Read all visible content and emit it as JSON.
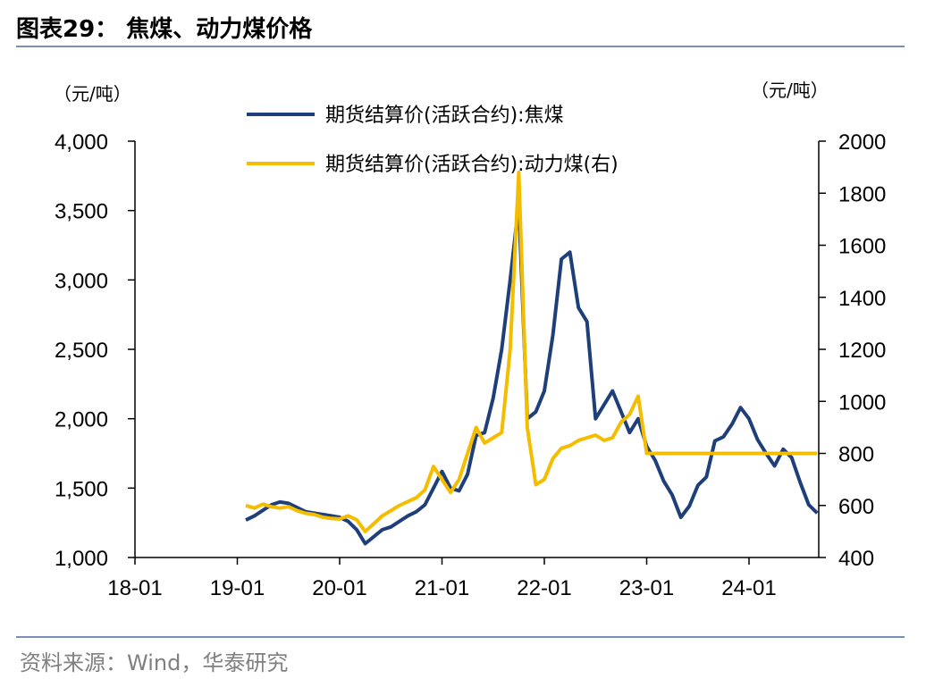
{
  "header": {
    "title": "图表29：  焦煤、动力煤价格"
  },
  "footer": {
    "source": "资料来源：Wind，华泰研究"
  },
  "chart_data": {
    "type": "line",
    "left_unit": "（元/吨）",
    "right_unit": "（元/吨）",
    "x_ticks": [
      "18-01",
      "19-01",
      "20-01",
      "21-01",
      "22-01",
      "23-01",
      "24-01"
    ],
    "y_left": {
      "min": 1000,
      "max": 4000,
      "ticks": [
        1000,
        1500,
        2000,
        2500,
        3000,
        3500,
        4000
      ],
      "tick_labels": [
        "1,000",
        "1,500",
        "2,000",
        "2,500",
        "3,000",
        "3,500",
        "4,000"
      ]
    },
    "y_right": {
      "min": 400,
      "max": 2000,
      "ticks": [
        400,
        600,
        800,
        1000,
        1200,
        1400,
        1600,
        1800,
        2000
      ],
      "tick_labels": [
        "400",
        "600",
        "800",
        "1000",
        "1200",
        "1400",
        "1600",
        "1800",
        "2000"
      ]
    },
    "legend_position": "top-center",
    "grid": false,
    "series": [
      {
        "name": "期货结算价(活跃合约):焦煤",
        "axis": "left",
        "color": "#1f3f7a",
        "points": [
          [
            "2019-02",
            1270
          ],
          [
            "2019-03",
            1300
          ],
          [
            "2019-04",
            1340
          ],
          [
            "2019-05",
            1380
          ],
          [
            "2019-06",
            1400
          ],
          [
            "2019-07",
            1390
          ],
          [
            "2019-08",
            1360
          ],
          [
            "2019-09",
            1330
          ],
          [
            "2019-10",
            1320
          ],
          [
            "2019-11",
            1310
          ],
          [
            "2019-12",
            1300
          ],
          [
            "2020-01",
            1290
          ],
          [
            "2020-02",
            1260
          ],
          [
            "2020-03",
            1200
          ],
          [
            "2020-04",
            1100
          ],
          [
            "2020-05",
            1150
          ],
          [
            "2020-06",
            1200
          ],
          [
            "2020-07",
            1220
          ],
          [
            "2020-08",
            1260
          ],
          [
            "2020-09",
            1300
          ],
          [
            "2020-10",
            1330
          ],
          [
            "2020-11",
            1380
          ],
          [
            "2020-12",
            1500
          ],
          [
            "2021-01",
            1620
          ],
          [
            "2021-02",
            1500
          ],
          [
            "2021-03",
            1480
          ],
          [
            "2021-04",
            1600
          ],
          [
            "2021-05",
            1880
          ],
          [
            "2021-06",
            1900
          ],
          [
            "2021-07",
            2150
          ],
          [
            "2021-08",
            2500
          ],
          [
            "2021-09",
            3000
          ],
          [
            "2021-10",
            3550
          ],
          [
            "2021-11",
            2000
          ],
          [
            "2021-12",
            2050
          ],
          [
            "2022-01",
            2200
          ],
          [
            "2022-02",
            2600
          ],
          [
            "2022-03",
            3150
          ],
          [
            "2022-04",
            3200
          ],
          [
            "2022-05",
            2800
          ],
          [
            "2022-06",
            2700
          ],
          [
            "2022-07",
            2000
          ],
          [
            "2022-08",
            2100
          ],
          [
            "2022-09",
            2200
          ],
          [
            "2022-10",
            2050
          ],
          [
            "2022-11",
            1900
          ],
          [
            "2022-12",
            2000
          ],
          [
            "2023-01",
            1800
          ],
          [
            "2023-02",
            1700
          ],
          [
            "2023-03",
            1550
          ],
          [
            "2023-04",
            1450
          ],
          [
            "2023-05",
            1290
          ],
          [
            "2023-06",
            1370
          ],
          [
            "2023-07",
            1520
          ],
          [
            "2023-08",
            1580
          ],
          [
            "2023-09",
            1840
          ],
          [
            "2023-10",
            1870
          ],
          [
            "2023-11",
            1960
          ],
          [
            "2023-12",
            2080
          ],
          [
            "2024-01",
            2000
          ],
          [
            "2024-02",
            1850
          ],
          [
            "2024-03",
            1750
          ],
          [
            "2024-04",
            1660
          ],
          [
            "2024-05",
            1780
          ],
          [
            "2024-06",
            1720
          ],
          [
            "2024-07",
            1540
          ],
          [
            "2024-08",
            1380
          ],
          [
            "2024-09",
            1320
          ]
        ]
      },
      {
        "name": "期货结算价(活跃合约):动力煤(右)",
        "axis": "right",
        "color": "#f5bd00",
        "points": [
          [
            "2019-02",
            600
          ],
          [
            "2019-03",
            590
          ],
          [
            "2019-04",
            605
          ],
          [
            "2019-05",
            595
          ],
          [
            "2019-06",
            590
          ],
          [
            "2019-07",
            595
          ],
          [
            "2019-08",
            580
          ],
          [
            "2019-09",
            570
          ],
          [
            "2019-10",
            565
          ],
          [
            "2019-11",
            555
          ],
          [
            "2019-12",
            550
          ],
          [
            "2020-01",
            548
          ],
          [
            "2020-02",
            560
          ],
          [
            "2020-03",
            545
          ],
          [
            "2020-04",
            500
          ],
          [
            "2020-05",
            530
          ],
          [
            "2020-06",
            560
          ],
          [
            "2020-07",
            580
          ],
          [
            "2020-08",
            600
          ],
          [
            "2020-09",
            615
          ],
          [
            "2020-10",
            630
          ],
          [
            "2020-11",
            660
          ],
          [
            "2020-12",
            750
          ],
          [
            "2021-01",
            700
          ],
          [
            "2021-02",
            650
          ],
          [
            "2021-03",
            700
          ],
          [
            "2021-04",
            800
          ],
          [
            "2021-05",
            900
          ],
          [
            "2021-06",
            840
          ],
          [
            "2021-07",
            860
          ],
          [
            "2021-08",
            880
          ],
          [
            "2021-09",
            1200
          ],
          [
            "2021-10",
            1880
          ],
          [
            "2021-11",
            900
          ],
          [
            "2021-12",
            680
          ],
          [
            "2022-01",
            700
          ],
          [
            "2022-02",
            780
          ],
          [
            "2022-03",
            820
          ],
          [
            "2022-04",
            830
          ],
          [
            "2022-05",
            850
          ],
          [
            "2022-06",
            860
          ],
          [
            "2022-07",
            870
          ],
          [
            "2022-08",
            850
          ],
          [
            "2022-09",
            860
          ],
          [
            "2022-10",
            920
          ],
          [
            "2022-11",
            950
          ],
          [
            "2022-12",
            1020
          ],
          [
            "2023-01",
            800
          ],
          [
            "2023-02",
            800
          ],
          [
            "2023-03",
            800
          ],
          [
            "2023-06",
            800
          ],
          [
            "2023-12",
            800
          ],
          [
            "2024-06",
            800
          ],
          [
            "2024-09",
            800
          ]
        ]
      }
    ]
  }
}
